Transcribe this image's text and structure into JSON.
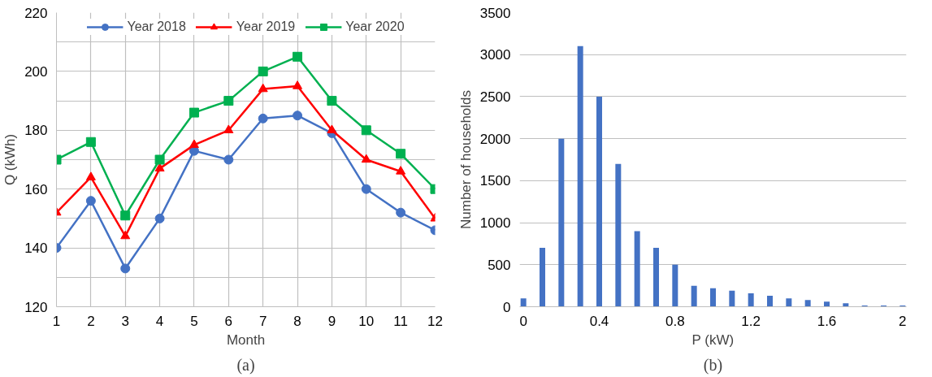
{
  "chart_data": [
    {
      "type": "line",
      "xlabel": "Month",
      "ylabel": "Q (kWh)",
      "annotations": [
        "(a)"
      ],
      "x": [
        1,
        2,
        3,
        4,
        5,
        6,
        7,
        8,
        9,
        10,
        11,
        12
      ],
      "series": [
        {
          "name": "Year 2018",
          "color": "#4472c4",
          "marker": "circle",
          "values": [
            140,
            156,
            133,
            150,
            173,
            170,
            184,
            185,
            179,
            160,
            152,
            146
          ]
        },
        {
          "name": "Year 2019",
          "color": "#ff0000",
          "marker": "triangle",
          "values": [
            152,
            164,
            144,
            167,
            175,
            180,
            194,
            195,
            180,
            170,
            166,
            150
          ]
        },
        {
          "name": "Year 2020",
          "color": "#00b050",
          "marker": "square",
          "values": [
            170,
            176,
            151,
            170,
            186,
            190,
            200,
            205,
            190,
            180,
            172,
            160
          ]
        }
      ],
      "xlim": [
        1,
        12
      ],
      "ylim": [
        120,
        220
      ],
      "xticks": [
        1,
        2,
        3,
        4,
        5,
        6,
        7,
        8,
        9,
        10,
        11,
        12
      ],
      "yticks": [
        120,
        {
          "value": 130,
          "label": null
        },
        140,
        {
          "value": 150,
          "label": null
        },
        160,
        {
          "value": 170,
          "label": null
        },
        180,
        {
          "value": 190,
          "label": null
        },
        200,
        {
          "value": 210,
          "label": null
        },
        220
      ],
      "grid": true,
      "legend": "top",
      "line_style": "solid"
    },
    {
      "type": "bar",
      "xlabel": "P (kW)",
      "ylabel": "Number of households",
      "annotations": [
        "(b)"
      ],
      "x": [
        0,
        0.1,
        0.2,
        0.3,
        0.4,
        0.5,
        0.6,
        0.7,
        0.8,
        0.9,
        1.0,
        1.1,
        1.2,
        1.3,
        1.4,
        1.5,
        1.6,
        1.7,
        1.8,
        1.9,
        2.0
      ],
      "values": [
        100,
        700,
        2000,
        3100,
        2500,
        1700,
        900,
        700,
        500,
        250,
        220,
        190,
        160,
        130,
        100,
        80,
        60,
        40,
        15,
        15,
        15
      ],
      "color": "#4472c4",
      "xlim": [
        -0.02,
        2.02
      ],
      "ylim": [
        0,
        3500
      ],
      "xticks": [
        0,
        0.4,
        0.8,
        1.2,
        1.6,
        2
      ],
      "yticks": [
        0,
        500,
        1000,
        1500,
        2000,
        2500,
        3000,
        3500
      ],
      "grid": "y",
      "legend": false
    }
  ]
}
